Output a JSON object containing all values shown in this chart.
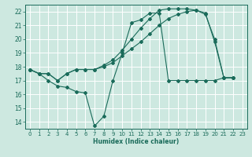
{
  "xlabel": "Humidex (Indice chaleur)",
  "xlim": [
    -0.5,
    23.5
  ],
  "ylim": [
    13.5,
    22.5
  ],
  "yticks": [
    14,
    15,
    16,
    17,
    18,
    19,
    20,
    21,
    22
  ],
  "xticks": [
    0,
    1,
    2,
    3,
    4,
    5,
    6,
    7,
    8,
    9,
    10,
    11,
    12,
    13,
    14,
    15,
    16,
    17,
    18,
    19,
    20,
    21,
    22,
    23
  ],
  "bg_color": "#cde8e0",
  "grid_color": "#ffffff",
  "line_color": "#1a6b5a",
  "series": [
    {
      "x": [
        0,
        1,
        2,
        3,
        4,
        5,
        6,
        7,
        8,
        9,
        10,
        11,
        12,
        13,
        14,
        15,
        16,
        17,
        18,
        19,
        20,
        21,
        22
      ],
      "y": [
        17.8,
        17.5,
        17.0,
        16.6,
        16.5,
        16.2,
        16.1,
        13.7,
        14.4,
        17.0,
        19.0,
        21.2,
        21.4,
        21.9,
        21.9,
        17.0,
        17.0,
        17.0,
        17.0,
        17.0,
        17.0,
        17.2,
        17.2
      ]
    },
    {
      "x": [
        0,
        1,
        2,
        3,
        4,
        5,
        6,
        7,
        8,
        9,
        10,
        11,
        12,
        13,
        14,
        15,
        16,
        17,
        18,
        19,
        20,
        21,
        22
      ],
      "y": [
        17.8,
        17.5,
        17.5,
        17.0,
        17.5,
        17.8,
        17.8,
        17.8,
        18.0,
        18.3,
        18.8,
        19.3,
        19.8,
        20.4,
        21.0,
        21.5,
        21.8,
        22.0,
        22.1,
        21.8,
        20.0,
        17.2,
        17.2
      ]
    },
    {
      "x": [
        0,
        1,
        2,
        3,
        4,
        5,
        6,
        7,
        8,
        9,
        10,
        11,
        12,
        13,
        14,
        15,
        16,
        17,
        18,
        19,
        20,
        21,
        22
      ],
      "y": [
        17.8,
        17.5,
        17.5,
        17.0,
        17.5,
        17.8,
        17.8,
        17.8,
        18.1,
        18.5,
        19.2,
        20.0,
        20.8,
        21.5,
        22.1,
        22.2,
        22.2,
        22.2,
        22.1,
        21.9,
        19.8,
        17.2,
        17.2
      ]
    }
  ]
}
